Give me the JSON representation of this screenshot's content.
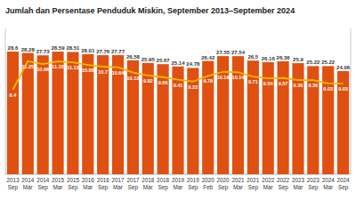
{
  "chart_data": {
    "type": "bar",
    "title": "Jumlah dan Persentase Penduduk Miskin, September 2013–September 2024",
    "categories": [
      "2013\nSep",
      "2014\nMar",
      "2014\nSep",
      "2015\nMar",
      "2015\nSep",
      "2016\nMar",
      "2016\nSep",
      "2017\nMar",
      "2017\nSep",
      "2018\nMar",
      "2018\nSep",
      "2019\nMar",
      "2019\nSep",
      "2020\nFeb",
      "2020\nSep",
      "2021\nMar",
      "2021\nSep",
      "2022\nMar",
      "2022\nSep",
      "2023\nMar",
      "2023\nSep",
      "2024\nMar",
      "2024\nSep"
    ],
    "series": [
      {
        "type": "bar",
        "color": "#e05010",
        "values": [
          28.6,
          28.28,
          27.73,
          28.59,
          28.51,
          28.01,
          27.76,
          27.77,
          26.58,
          25.95,
          25.67,
          25.14,
          24.78,
          26.42,
          27.55,
          27.54,
          26.5,
          26.16,
          26.36,
          25.9,
          25.22,
          25.22,
          24.06
        ]
      },
      {
        "type": "line",
        "axis": "y2",
        "color": "#f0b800",
        "values": [
          8.4,
          11.25,
          10.96,
          11.22,
          11.13,
          10.86,
          10.7,
          10.64,
          10.12,
          9.82,
          9.66,
          9.41,
          9.22,
          9.78,
          10.19,
          10.14,
          9.71,
          9.54,
          9.57,
          9.36,
          9.36,
          9.03,
          9.03
        ]
      }
    ],
    "ylim": [
      0,
      34
    ],
    "yticks": [],
    "y2lim": [
      0,
      14.5
    ],
    "y2ticks": [],
    "tick_labels": "x",
    "data_labels": true,
    "grid": false
  }
}
